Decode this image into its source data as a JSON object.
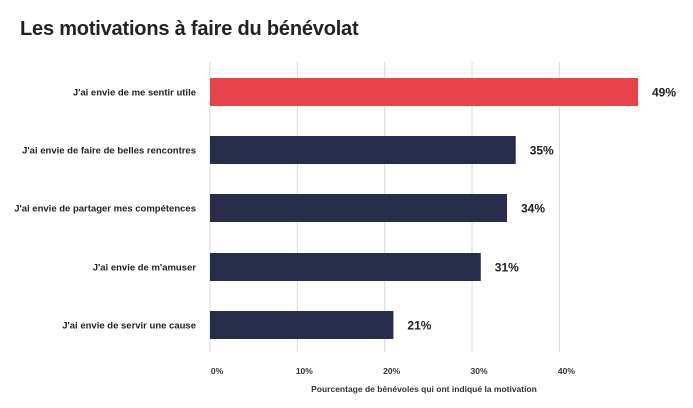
{
  "chart_data": {
    "type": "bar",
    "orientation": "horizontal",
    "title": "Les motivations à faire du bénévolat",
    "categories": [
      "J'ai envie de me sentir utile",
      "J'ai envie de faire de belles rencontres",
      "J'ai envie de partager mes compétences",
      "J'ai envie de m'amuser",
      "J'ai envie de servir une cause"
    ],
    "values": [
      49,
      35,
      34,
      31,
      21
    ],
    "value_labels": [
      "49%",
      "35%",
      "34%",
      "31%",
      "21%"
    ],
    "highlight_index": 0,
    "colors": {
      "highlight": "#e8434b",
      "default": "#262c4a"
    },
    "xlabel": "Pourcentage de bénévoles qui ont indiqué la motivation",
    "ylabel": "",
    "xlim": [
      0,
      49
    ],
    "xticks": [
      0,
      10,
      20,
      30,
      40
    ],
    "xtick_labels": [
      "0%",
      "10%",
      "20%",
      "30%",
      "40%"
    ],
    "grid": "vertical"
  }
}
